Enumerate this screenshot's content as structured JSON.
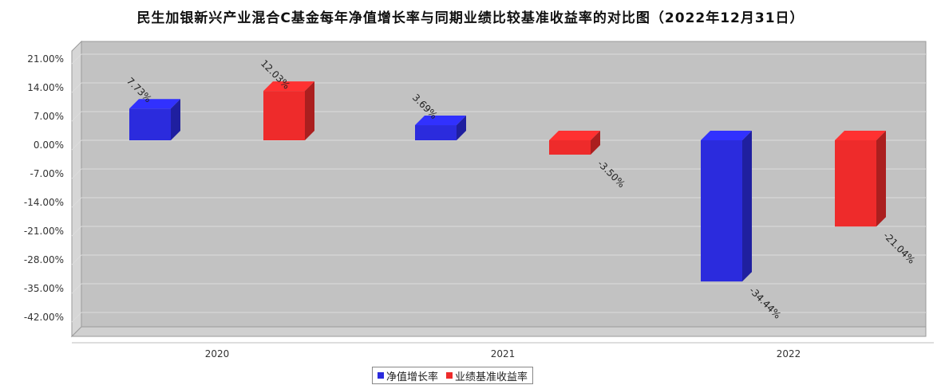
{
  "chart_data": {
    "type": "bar",
    "title": "民生加银新兴产业混合C基金每年净值增长率与同期业绩比较基准收益率的对比图（2022年12月31日）",
    "categories": [
      "2020",
      "2021",
      "2022"
    ],
    "series": [
      {
        "name": "净值增长率",
        "values": [
          7.73,
          3.69,
          -34.44
        ],
        "labels": [
          "7.73%",
          "3.69%",
          "-34.44%"
        ],
        "color": "#2b2bdd"
      },
      {
        "name": "业绩基准收益率",
        "values": [
          12.03,
          -3.5,
          -21.04
        ],
        "labels": [
          "12.03%",
          "-3.50%",
          "-21.04%"
        ],
        "color": "#ee2b2b"
      }
    ],
    "ylim": [
      -49,
      21
    ],
    "yticks": [
      21,
      14,
      7,
      0,
      -7,
      -14,
      -21,
      -28,
      -35,
      -42
    ],
    "ytick_labels": [
      "21.00%",
      "14.00%",
      "7.00%",
      "0.00%",
      "-7.00%",
      "-14.00%",
      "-21.00%",
      "-28.00%",
      "-35.00%",
      "-42.00%"
    ],
    "grid": true,
    "legend_position": "bottom-center"
  }
}
